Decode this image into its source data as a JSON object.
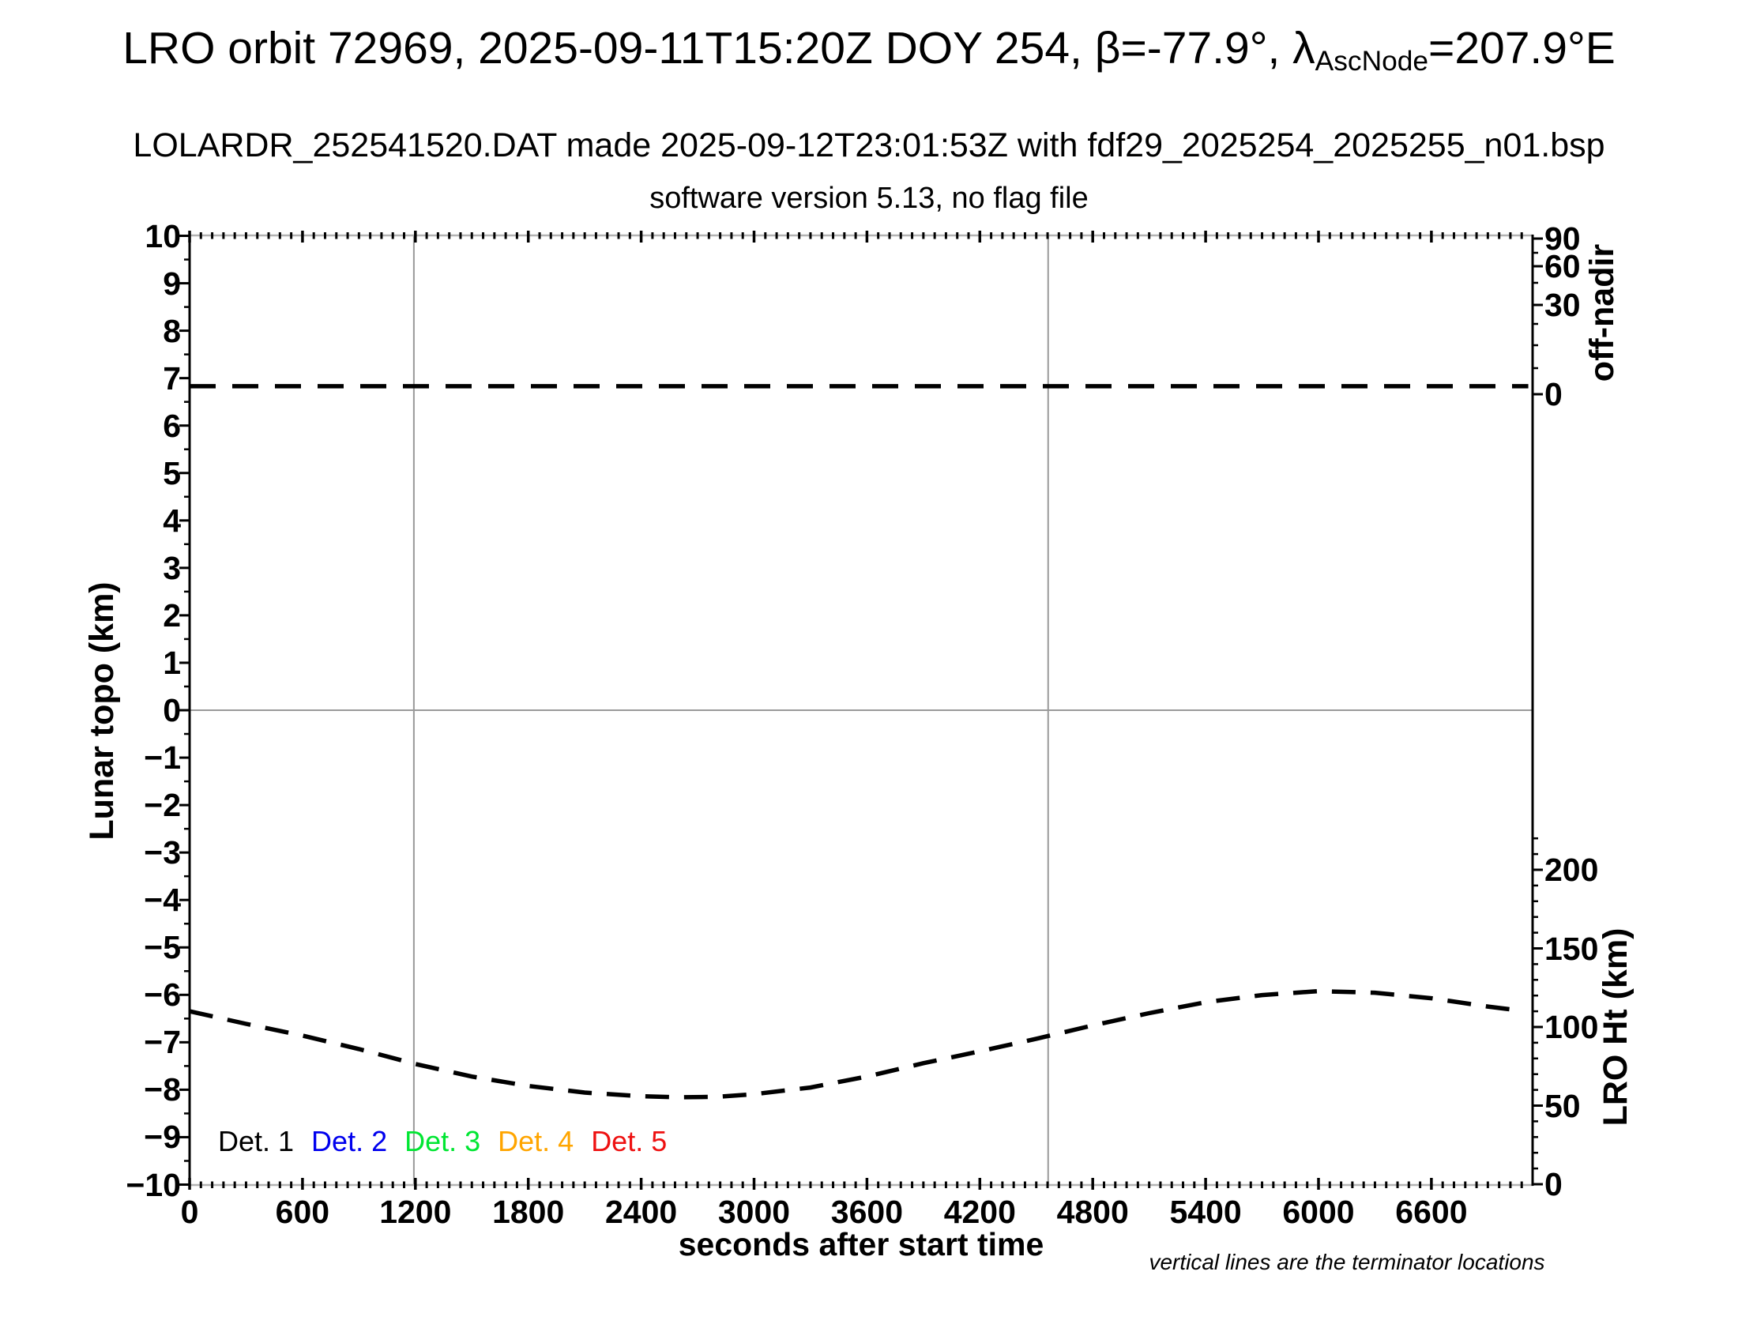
{
  "header": {
    "title_prefix": "LRO orbit 72969, 2025-09-11T15:20Z DOY 254, β=-77.9°, λ",
    "title_subscript": "AscNode",
    "title_suffix": "=207.9°E",
    "subtitle1": "LOLARDR_252541520.DAT made 2025-09-12T23:01:53Z with fdf29_2025254_2025255_n01.bsp",
    "subtitle2": "software version 5.13, no flag file"
  },
  "chart_data": {
    "type": "line",
    "xlabel": "seconds after start time",
    "x_axis": {
      "min": 0,
      "max": 7130,
      "major_tick_step": 600,
      "minor_tick_step": 60,
      "tick_labels": [
        "0",
        "600",
        "1200",
        "1800",
        "2400",
        "3000",
        "3600",
        "4200",
        "4800",
        "5400",
        "6000",
        "6600"
      ]
    },
    "left_axis": {
      "label": "Lunar topo (km)",
      "min": -10,
      "max": 10,
      "major_tick_step": 1,
      "minor_tick_step": 0.5,
      "tick_labels": [
        "10",
        "9",
        "8",
        "7",
        "6",
        "5",
        "4",
        "3",
        "2",
        "1",
        "0",
        "−1",
        "−2",
        "−3",
        "−4",
        "−5",
        "−6",
        "−7",
        "−8",
        "−9",
        "−10"
      ]
    },
    "right_axis_top": {
      "label": "off-nadir",
      "unit": "degrees",
      "scale": "nonlinear",
      "tick_labels": [
        "90",
        "60",
        "30",
        "0"
      ]
    },
    "right_axis_bottom": {
      "label": "LRO Ht (km)",
      "tick_values": [
        200,
        150,
        100,
        50,
        0
      ],
      "tick_labels": [
        "200",
        "150",
        "100",
        "50",
        "0"
      ],
      "minor_tick_step_km": 10,
      "minor_tick_max_km": 220
    },
    "gridlines": {
      "horizontal_at_topo": 0,
      "vertical_terminators_t": [
        1192,
        4563
      ]
    },
    "legend": [
      {
        "label": "Det. 1",
        "color": "#000000"
      },
      {
        "label": "Det. 2",
        "color": "#0000ee"
      },
      {
        "label": "Det. 3",
        "color": "#00e632"
      },
      {
        "label": "Det. 4",
        "color": "#ffa500"
      },
      {
        "label": "Det. 5",
        "color": "#ee1111"
      }
    ],
    "series": [
      {
        "name": "off-nadir angle",
        "axis": "right_top",
        "style": "dashed",
        "color": "#000000",
        "approx_value_deg": 2,
        "x": [
          0,
          7115
        ],
        "y_topo_equivalent": [
          6.83,
          6.83
        ]
      },
      {
        "name": "LRO height",
        "axis": "right_bottom",
        "style": "dashed",
        "color": "#000000",
        "points": [
          [
            0,
            110
          ],
          [
            300,
            102
          ],
          [
            600,
            94.5
          ],
          [
            900,
            86
          ],
          [
            1200,
            76.5
          ],
          [
            1500,
            68.5
          ],
          [
            1800,
            62.5
          ],
          [
            2100,
            58.3
          ],
          [
            2400,
            56.0
          ],
          [
            2600,
            55.3
          ],
          [
            2800,
            55.6
          ],
          [
            3000,
            57.3
          ],
          [
            3300,
            61.5
          ],
          [
            3600,
            68.5
          ],
          [
            3900,
            77
          ],
          [
            4200,
            84.5
          ],
          [
            4500,
            92.5
          ],
          [
            4800,
            101
          ],
          [
            5100,
            108.8
          ],
          [
            5400,
            115.8
          ],
          [
            5700,
            120.3
          ],
          [
            6000,
            122.8
          ],
          [
            6300,
            121.8
          ],
          [
            6600,
            118.3
          ],
          [
            6900,
            113
          ],
          [
            7080,
            110.3
          ]
        ]
      }
    ],
    "footnote": "vertical lines are the terminator locations"
  }
}
